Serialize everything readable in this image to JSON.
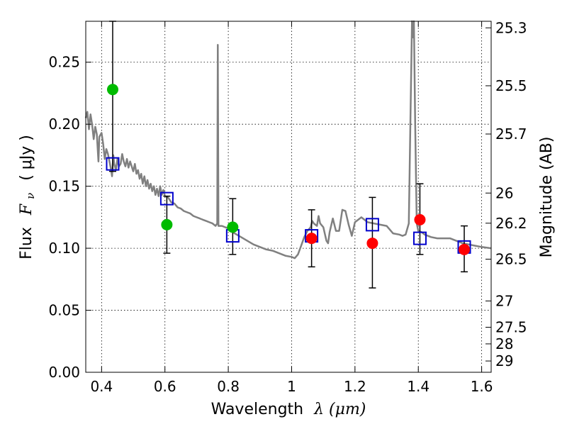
{
  "chart_data": {
    "type": "scatter",
    "xlabel_text": "Wavelength",
    "xlabel_math": "λ (μm)",
    "ylabel_text": "Flux",
    "ylabel_math": "F",
    "ylabel_sub": "ν",
    "ylabel_unit": "( μJy )",
    "y2label": "Magnitude (AB)",
    "xlim": [
      0.35,
      1.63
    ],
    "ylim": [
      0.0,
      0.283
    ],
    "grid": true,
    "x_ticks": [
      {
        "value": 0.4,
        "label": "0.4"
      },
      {
        "value": 0.6,
        "label": "0.6"
      },
      {
        "value": 0.8,
        "label": "0.8"
      },
      {
        "value": 1.0,
        "label": "1"
      },
      {
        "value": 1.2,
        "label": "1.2"
      },
      {
        "value": 1.4,
        "label": "1.4"
      },
      {
        "value": 1.6,
        "label": "1.6"
      }
    ],
    "y_ticks": [
      {
        "value": 0.0,
        "label": "0.00"
      },
      {
        "value": 0.05,
        "label": "0.05"
      },
      {
        "value": 0.1,
        "label": "0.10"
      },
      {
        "value": 0.15,
        "label": "0.15"
      },
      {
        "value": 0.2,
        "label": "0.20"
      },
      {
        "value": 0.25,
        "label": "0.25"
      }
    ],
    "y2_ticks": [
      {
        "flux": 0.2777,
        "label": "25.3"
      },
      {
        "flux": 0.231,
        "label": "25.5"
      },
      {
        "flux": 0.1921,
        "label": "25.7"
      },
      {
        "flux": 0.1445,
        "label": "26"
      },
      {
        "flux": 0.1202,
        "label": "26.2"
      },
      {
        "flux": 0.0912,
        "label": "26.5"
      },
      {
        "flux": 0.0575,
        "label": "27"
      },
      {
        "flux": 0.0363,
        "label": "27.5"
      },
      {
        "flux": 0.0229,
        "label": "28"
      },
      {
        "flux": 0.0091,
        "label": "29"
      }
    ],
    "model_spectrum": {
      "color": "#808080",
      "points": [
        [
          0.35,
          0.205
        ],
        [
          0.355,
          0.21
        ],
        [
          0.36,
          0.196
        ],
        [
          0.365,
          0.208
        ],
        [
          0.37,
          0.2
        ],
        [
          0.375,
          0.188
        ],
        [
          0.38,
          0.198
        ],
        [
          0.385,
          0.192
        ],
        [
          0.39,
          0.17
        ],
        [
          0.393,
          0.19
        ],
        [
          0.4,
          0.193
        ],
        [
          0.405,
          0.184
        ],
        [
          0.41,
          0.172
        ],
        [
          0.415,
          0.18
        ],
        [
          0.42,
          0.176
        ],
        [
          0.425,
          0.17
        ],
        [
          0.43,
          0.163
        ],
        [
          0.433,
          0.158
        ],
        [
          0.437,
          0.175
        ],
        [
          0.44,
          0.168
        ],
        [
          0.445,
          0.163
        ],
        [
          0.45,
          0.172
        ],
        [
          0.455,
          0.166
        ],
        [
          0.46,
          0.168
        ],
        [
          0.465,
          0.176
        ],
        [
          0.47,
          0.17
        ],
        [
          0.475,
          0.166
        ],
        [
          0.48,
          0.172
        ],
        [
          0.485,
          0.165
        ],
        [
          0.49,
          0.17
        ],
        [
          0.5,
          0.162
        ],
        [
          0.505,
          0.168
        ],
        [
          0.51,
          0.16
        ],
        [
          0.515,
          0.163
        ],
        [
          0.52,
          0.156
        ],
        [
          0.525,
          0.16
        ],
        [
          0.53,
          0.152
        ],
        [
          0.535,
          0.158
        ],
        [
          0.54,
          0.15
        ],
        [
          0.545,
          0.155
        ],
        [
          0.55,
          0.148
        ],
        [
          0.555,
          0.152
        ],
        [
          0.56,
          0.146
        ],
        [
          0.565,
          0.15
        ],
        [
          0.57,
          0.143
        ],
        [
          0.575,
          0.148
        ],
        [
          0.58,
          0.142
        ],
        [
          0.585,
          0.15
        ],
        [
          0.59,
          0.143
        ],
        [
          0.595,
          0.147
        ],
        [
          0.6,
          0.142
        ],
        [
          0.61,
          0.141
        ],
        [
          0.62,
          0.137
        ],
        [
          0.63,
          0.136
        ],
        [
          0.64,
          0.133
        ],
        [
          0.65,
          0.132
        ],
        [
          0.66,
          0.13
        ],
        [
          0.67,
          0.129
        ],
        [
          0.68,
          0.128
        ],
        [
          0.69,
          0.126
        ],
        [
          0.7,
          0.125
        ],
        [
          0.71,
          0.124
        ],
        [
          0.72,
          0.123
        ],
        [
          0.73,
          0.122
        ],
        [
          0.74,
          0.121
        ],
        [
          0.75,
          0.12
        ],
        [
          0.76,
          0.118
        ],
        [
          0.765,
          0.12
        ],
        [
          0.767,
          0.264
        ],
        [
          0.769,
          0.118
        ],
        [
          0.78,
          0.118
        ],
        [
          0.79,
          0.117
        ],
        [
          0.8,
          0.116
        ],
        [
          0.82,
          0.112
        ],
        [
          0.84,
          0.109
        ],
        [
          0.86,
          0.106
        ],
        [
          0.88,
          0.103
        ],
        [
          0.9,
          0.101
        ],
        [
          0.92,
          0.099
        ],
        [
          0.94,
          0.098
        ],
        [
          0.96,
          0.096
        ],
        [
          0.98,
          0.094
        ],
        [
          1.0,
          0.093
        ],
        [
          1.01,
          0.092
        ],
        [
          1.02,
          0.095
        ],
        [
          1.03,
          0.102
        ],
        [
          1.04,
          0.109
        ],
        [
          1.05,
          0.114
        ],
        [
          1.06,
          0.117
        ],
        [
          1.065,
          0.122
        ],
        [
          1.07,
          0.12
        ],
        [
          1.08,
          0.118
        ],
        [
          1.085,
          0.126
        ],
        [
          1.09,
          0.12
        ],
        [
          1.1,
          0.117
        ],
        [
          1.11,
          0.106
        ],
        [
          1.115,
          0.104
        ],
        [
          1.12,
          0.113
        ],
        [
          1.13,
          0.124
        ],
        [
          1.14,
          0.114
        ],
        [
          1.15,
          0.114
        ],
        [
          1.16,
          0.131
        ],
        [
          1.17,
          0.13
        ],
        [
          1.18,
          0.119
        ],
        [
          1.19,
          0.11
        ],
        [
          1.2,
          0.121
        ],
        [
          1.22,
          0.125
        ],
        [
          1.24,
          0.121
        ],
        [
          1.26,
          0.12
        ],
        [
          1.28,
          0.119
        ],
        [
          1.3,
          0.118
        ],
        [
          1.32,
          0.112
        ],
        [
          1.34,
          0.111
        ],
        [
          1.35,
          0.11
        ],
        [
          1.36,
          0.111
        ],
        [
          1.37,
          0.12
        ],
        [
          1.375,
          0.2
        ],
        [
          1.38,
          0.283
        ],
        [
          1.383,
          0.27
        ],
        [
          1.386,
          0.283
        ],
        [
          1.39,
          0.2
        ],
        [
          1.395,
          0.12
        ],
        [
          1.4,
          0.114
        ],
        [
          1.41,
          0.113
        ],
        [
          1.42,
          0.111
        ],
        [
          1.44,
          0.109
        ],
        [
          1.46,
          0.108
        ],
        [
          1.5,
          0.108
        ],
        [
          1.52,
          0.106
        ],
        [
          1.54,
          0.104
        ],
        [
          1.56,
          0.103
        ],
        [
          1.58,
          0.102
        ],
        [
          1.6,
          0.101
        ],
        [
          1.63,
          0.1
        ]
      ]
    },
    "model_photometry": {
      "marker": "open-square",
      "color": "#0000cc",
      "points": [
        {
          "x": 0.435,
          "y": 0.168
        },
        {
          "x": 0.606,
          "y": 0.14
        },
        {
          "x": 0.814,
          "y": 0.11
        },
        {
          "x": 1.063,
          "y": 0.11
        },
        {
          "x": 1.255,
          "y": 0.119
        },
        {
          "x": 1.405,
          "y": 0.108
        },
        {
          "x": 1.545,
          "y": 0.101
        }
      ]
    },
    "observed_optical": {
      "marker": "filled-circle",
      "color": "#00bb00",
      "points": [
        {
          "x": 0.435,
          "y": 0.228,
          "ylo": 0.162,
          "yhi": 0.283
        },
        {
          "x": 0.606,
          "y": 0.119,
          "ylo": 0.096,
          "yhi": 0.142
        },
        {
          "x": 0.814,
          "y": 0.117,
          "ylo": 0.095,
          "yhi": 0.14
        }
      ]
    },
    "observed_nir": {
      "marker": "filled-circle",
      "color": "#ff0000",
      "points": [
        {
          "x": 1.063,
          "y": 0.108,
          "ylo": 0.085,
          "yhi": 0.131
        },
        {
          "x": 1.255,
          "y": 0.104,
          "ylo": 0.068,
          "yhi": 0.141
        },
        {
          "x": 1.405,
          "y": 0.123,
          "ylo": 0.095,
          "yhi": 0.152
        },
        {
          "x": 1.545,
          "y": 0.099,
          "ylo": 0.081,
          "yhi": 0.118
        }
      ]
    }
  }
}
